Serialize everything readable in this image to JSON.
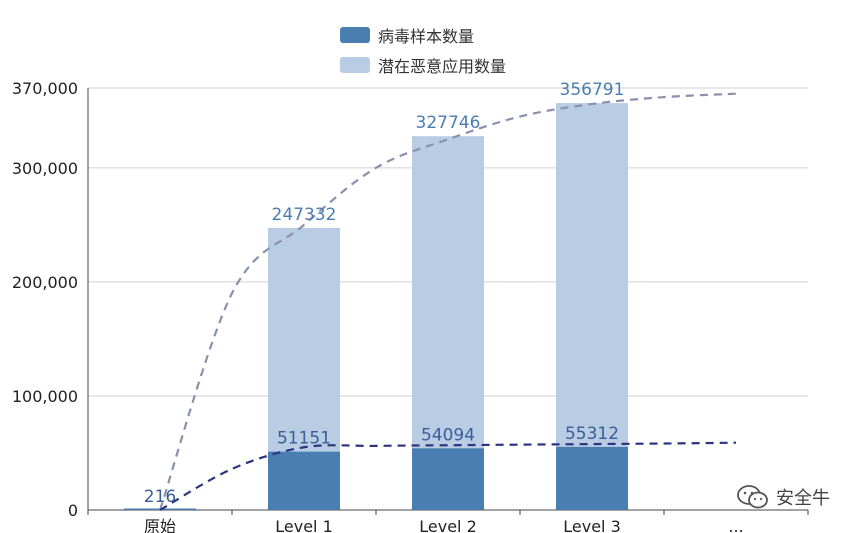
{
  "chart_data": {
    "type": "bar",
    "stacked": true,
    "categories": [
      "原始",
      "Level 1",
      "Level 2",
      "Level 3",
      "..."
    ],
    "series": [
      {
        "name": "病毒样本数量",
        "values": [
          216,
          51151,
          54094,
          55312,
          null
        ],
        "color": "#4a7eb0"
      },
      {
        "name": "潜在恶意应用数量",
        "values": [
          null,
          247332,
          327746,
          356791,
          null
        ],
        "color": "#b8cde4"
      }
    ],
    "data_labels": {
      "lower": [
        "216",
        "51151",
        "54094",
        "55312",
        ""
      ],
      "upper": [
        "",
        "247332",
        "327746",
        "356791",
        ""
      ]
    },
    "y_ticks": [
      0,
      100000,
      200000,
      300000,
      370000
    ],
    "y_tick_labels": [
      "0",
      "100,000",
      "200,000",
      "300,000",
      "370,000"
    ],
    "ylim": [
      0,
      370000
    ],
    "trend_lines": [
      {
        "name": "upper-trend",
        "color": "#8a90ad",
        "x": [
          0,
          0.5,
          1,
          1.5,
          2,
          2.5,
          3,
          3.5,
          4
        ],
        "y": [
          0,
          190000,
          250000,
          300000,
          325000,
          345000,
          356000,
          362000,
          365000
        ]
      },
      {
        "name": "lower-trend",
        "color": "#2c3480",
        "x": [
          0,
          0.5,
          1,
          1.5,
          2,
          2.5,
          3,
          3.5,
          4
        ],
        "y": [
          0,
          36000,
          55000,
          56200,
          56800,
          57300,
          57800,
          58300,
          59000
        ]
      }
    ],
    "label_color": "#4a7eb0",
    "legend_position": "top"
  },
  "watermark": {
    "text": "安全牛",
    "icon": "wechat-icon"
  }
}
